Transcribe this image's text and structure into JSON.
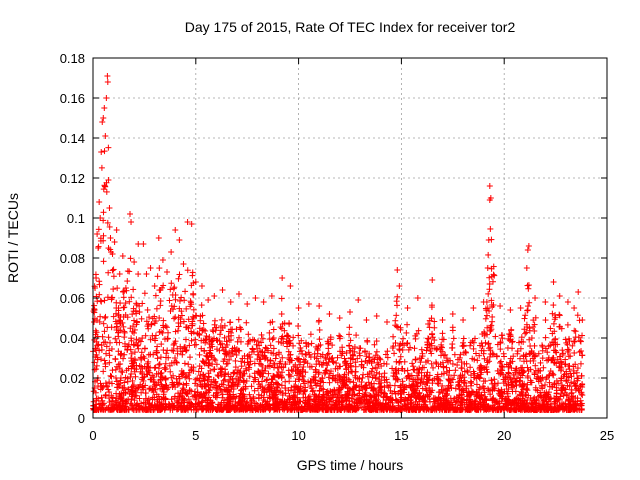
{
  "chart_data": {
    "type": "scatter",
    "title": "Day 175 of 2015, Rate Of TEC Index for receiver tor2",
    "xlabel": "GPS time / hours",
    "ylabel": "ROTI / TECUs",
    "xlim": [
      0,
      25
    ],
    "ylim": [
      0,
      0.18
    ],
    "xticks": [
      0,
      5,
      10,
      15,
      20,
      25
    ],
    "xtick_labels": [
      "0",
      "5",
      "10",
      "15",
      "20",
      "25"
    ],
    "yticks": [
      0,
      0.02,
      0.04,
      0.06,
      0.08,
      0.1,
      0.12,
      0.14,
      0.16,
      0.18
    ],
    "ytick_labels": [
      "0",
      "0.02",
      "0.04",
      "0.06",
      "0.08",
      "0.1",
      "0.12",
      "0.14",
      "0.16",
      "0.18"
    ],
    "grid": true,
    "marker": "+",
    "color": "#ff0000",
    "series": [
      {
        "name": "ROTI",
        "points": [
          [
            0.05,
            0.048
          ],
          [
            0.1,
            0.065
          ],
          [
            0.15,
            0.07
          ],
          [
            0.2,
            0.092
          ],
          [
            0.25,
            0.085
          ],
          [
            0.3,
            0.108
          ],
          [
            0.35,
            0.1
          ],
          [
            0.4,
            0.133
          ],
          [
            0.45,
            0.148
          ],
          [
            0.5,
            0.15
          ],
          [
            0.55,
            0.155
          ],
          [
            0.6,
            0.141
          ],
          [
            0.65,
            0.16
          ],
          [
            0.7,
            0.171
          ],
          [
            0.72,
            0.168
          ],
          [
            0.75,
            0.119
          ],
          [
            0.8,
            0.105
          ],
          [
            0.85,
            0.09
          ],
          [
            0.95,
            0.082
          ],
          [
            1.05,
            0.088
          ],
          [
            1.15,
            0.094
          ],
          [
            1.3,
            0.072
          ],
          [
            1.45,
            0.081
          ],
          [
            1.6,
            0.065
          ],
          [
            1.8,
            0.102
          ],
          [
            1.85,
            0.098
          ],
          [
            2.0,
            0.078
          ],
          [
            2.2,
            0.087
          ],
          [
            2.45,
            0.087
          ],
          [
            2.6,
            0.072
          ],
          [
            2.8,
            0.075
          ],
          [
            3.0,
            0.066
          ],
          [
            3.2,
            0.09
          ],
          [
            3.4,
            0.079
          ],
          [
            3.6,
            0.073
          ],
          [
            3.8,
            0.083
          ],
          [
            4.0,
            0.094
          ],
          [
            4.2,
            0.089
          ],
          [
            4.4,
            0.077
          ],
          [
            4.6,
            0.098
          ],
          [
            4.8,
            0.097
          ],
          [
            5.0,
            0.068
          ],
          [
            5.3,
            0.066
          ],
          [
            5.6,
            0.059
          ],
          [
            5.9,
            0.061
          ],
          [
            6.3,
            0.064
          ],
          [
            6.7,
            0.058
          ],
          [
            7.1,
            0.062
          ],
          [
            7.5,
            0.057
          ],
          [
            7.9,
            0.06
          ],
          [
            8.3,
            0.058
          ],
          [
            8.7,
            0.061
          ],
          [
            9.2,
            0.07
          ],
          [
            9.6,
            0.066
          ],
          [
            10.0,
            0.055
          ],
          [
            10.5,
            0.057
          ],
          [
            11.0,
            0.056
          ],
          [
            11.5,
            0.052
          ],
          [
            12.0,
            0.05
          ],
          [
            12.5,
            0.053
          ],
          [
            12.9,
            0.059
          ],
          [
            13.3,
            0.049
          ],
          [
            13.8,
            0.051
          ],
          [
            14.3,
            0.048
          ],
          [
            14.8,
            0.074
          ],
          [
            14.9,
            0.066
          ],
          [
            15.3,
            0.055
          ],
          [
            15.8,
            0.06
          ],
          [
            16.3,
            0.047
          ],
          [
            16.5,
            0.069
          ],
          [
            17.0,
            0.049
          ],
          [
            17.5,
            0.052
          ],
          [
            18.0,
            0.049
          ],
          [
            18.5,
            0.055
          ],
          [
            19.0,
            0.058
          ],
          [
            19.2,
            0.075
          ],
          [
            19.25,
            0.089
          ],
          [
            19.3,
            0.109
          ],
          [
            19.3,
            0.116
          ],
          [
            19.35,
            0.11
          ],
          [
            19.8,
            0.056
          ],
          [
            20.3,
            0.054
          ],
          [
            20.8,
            0.055
          ],
          [
            21.1,
            0.075
          ],
          [
            21.15,
            0.084
          ],
          [
            21.2,
            0.086
          ],
          [
            21.5,
            0.06
          ],
          [
            22.0,
            0.058
          ],
          [
            22.4,
            0.068
          ],
          [
            22.7,
            0.061
          ],
          [
            23.1,
            0.058
          ],
          [
            23.4,
            0.055
          ],
          [
            23.6,
            0.063
          ],
          [
            23.8,
            0.049
          ]
        ]
      }
    ]
  }
}
